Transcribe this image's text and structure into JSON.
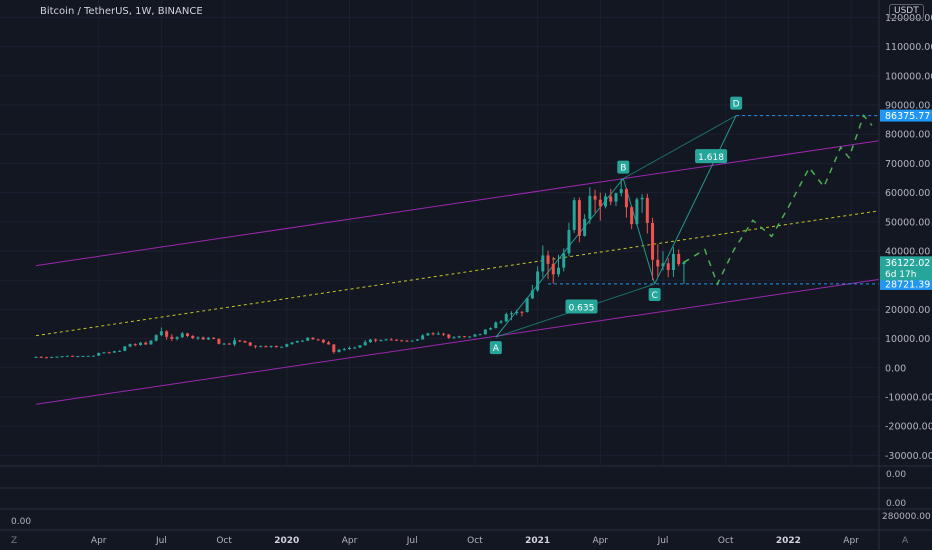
{
  "header": {
    "title": "Bitcoin / TetherUS, 1W, BINANCE",
    "currency": "USDT"
  },
  "price_axis": {
    "ticks": [
      120000,
      110000,
      100000,
      90000,
      80000,
      70000,
      60000,
      50000,
      40000,
      30000,
      20000,
      10000,
      0,
      -10000,
      -20000,
      -30000
    ],
    "tick_labels": [
      "120000.00",
      "110000.00",
      "100000.00",
      "90000.00",
      "80000.00",
      "70000.00",
      "60000.00",
      "50000.00",
      "40000.00",
      "30000.00",
      "20000.00",
      "10000.00",
      "0.00",
      "-10000.00",
      "-20000.00",
      "-30000.00"
    ],
    "badges": {
      "target": {
        "value": 86375.77,
        "label": "86375.77",
        "color": "#2196f3"
      },
      "current": {
        "value": 36122.02,
        "label": "36122.02",
        "sub": "6d 17h",
        "color": "#26a69a"
      },
      "support": {
        "value": 28721.39,
        "label": "28721.39",
        "color": "#2196f3"
      }
    }
  },
  "panes": {
    "pane1_label": "0.00",
    "pane2_label": "0.00",
    "left_label": "0.00",
    "right_label": "280000.00"
  },
  "time_axis": {
    "labels": [
      {
        "t": 3,
        "text": "Apr",
        "bold": false
      },
      {
        "t": 6,
        "text": "Jul",
        "bold": false
      },
      {
        "t": 9,
        "text": "Oct",
        "bold": false
      },
      {
        "t": 12,
        "text": "2020",
        "bold": true
      },
      {
        "t": 15,
        "text": "Apr",
        "bold": false
      },
      {
        "t": 18,
        "text": "Jul",
        "bold": false
      },
      {
        "t": 21,
        "text": "Oct",
        "bold": false
      },
      {
        "t": 24,
        "text": "2021",
        "bold": true
      },
      {
        "t": 27,
        "text": "Apr",
        "bold": false
      },
      {
        "t": 30,
        "text": "Jul",
        "bold": false
      },
      {
        "t": 33,
        "text": "Oct",
        "bold": false
      },
      {
        "t": 36,
        "text": "2022",
        "bold": true
      },
      {
        "t": 39,
        "text": "Apr",
        "bold": false
      }
    ],
    "corner_left": "Z",
    "corner_right": "A"
  },
  "chart_data": {
    "type": "candlestick",
    "title": "Bitcoin / TetherUS, 1W, BINANCE",
    "x_unit": "months since Jan 2019",
    "ylim": [
      -35000,
      125000
    ],
    "candles": [
      {
        "t": 0.0,
        "o": 3600,
        "h": 3900,
        "l": 3450,
        "c": 3750
      },
      {
        "t": 0.25,
        "o": 3750,
        "h": 3950,
        "l": 3550,
        "c": 3600
      },
      {
        "t": 0.5,
        "o": 3600,
        "h": 3800,
        "l": 3400,
        "c": 3500
      },
      {
        "t": 0.75,
        "o": 3500,
        "h": 3800,
        "l": 3400,
        "c": 3700
      },
      {
        "t": 1.0,
        "o": 3700,
        "h": 3900,
        "l": 3600,
        "c": 3800
      },
      {
        "t": 1.25,
        "o": 3800,
        "h": 4100,
        "l": 3700,
        "c": 3950
      },
      {
        "t": 1.5,
        "o": 3950,
        "h": 4200,
        "l": 3850,
        "c": 4100
      },
      {
        "t": 1.75,
        "o": 4100,
        "h": 4200,
        "l": 3900,
        "c": 3950
      },
      {
        "t": 2.0,
        "o": 3950,
        "h": 4050,
        "l": 3850,
        "c": 4000
      },
      {
        "t": 2.25,
        "o": 4000,
        "h": 4100,
        "l": 3900,
        "c": 4050
      },
      {
        "t": 2.5,
        "o": 4050,
        "h": 4150,
        "l": 3950,
        "c": 4100
      },
      {
        "t": 2.75,
        "o": 4100,
        "h": 4200,
        "l": 4000,
        "c": 4150
      },
      {
        "t": 3.0,
        "o": 4150,
        "h": 5200,
        "l": 4100,
        "c": 5100
      },
      {
        "t": 3.25,
        "o": 5100,
        "h": 5400,
        "l": 4900,
        "c": 5300
      },
      {
        "t": 3.5,
        "o": 5300,
        "h": 5500,
        "l": 5000,
        "c": 5200
      },
      {
        "t": 3.75,
        "o": 5200,
        "h": 5800,
        "l": 5100,
        "c": 5700
      },
      {
        "t": 4.0,
        "o": 5700,
        "h": 6000,
        "l": 5500,
        "c": 5800
      },
      {
        "t": 4.25,
        "o": 5800,
        "h": 7500,
        "l": 5700,
        "c": 7300
      },
      {
        "t": 4.5,
        "o": 7300,
        "h": 8300,
        "l": 7100,
        "c": 8100
      },
      {
        "t": 4.75,
        "o": 8100,
        "h": 8400,
        "l": 7400,
        "c": 7800
      },
      {
        "t": 5.0,
        "o": 7800,
        "h": 8800,
        "l": 7600,
        "c": 8600
      },
      {
        "t": 5.25,
        "o": 8600,
        "h": 9000,
        "l": 7800,
        "c": 8000
      },
      {
        "t": 5.5,
        "o": 8000,
        "h": 9500,
        "l": 7900,
        "c": 9300
      },
      {
        "t": 5.75,
        "o": 9300,
        "h": 11500,
        "l": 9000,
        "c": 11200
      },
      {
        "t": 6.0,
        "o": 11200,
        "h": 13800,
        "l": 10800,
        "c": 12500
      },
      {
        "t": 6.25,
        "o": 12500,
        "h": 12900,
        "l": 9600,
        "c": 10600
      },
      {
        "t": 6.5,
        "o": 10600,
        "h": 11500,
        "l": 9200,
        "c": 9900
      },
      {
        "t": 6.75,
        "o": 9900,
        "h": 10800,
        "l": 9400,
        "c": 10500
      },
      {
        "t": 7.0,
        "o": 10500,
        "h": 12300,
        "l": 10200,
        "c": 11800
      },
      {
        "t": 7.25,
        "o": 11800,
        "h": 12000,
        "l": 10500,
        "c": 10900
      },
      {
        "t": 7.5,
        "o": 10900,
        "h": 11200,
        "l": 9800,
        "c": 10200
      },
      {
        "t": 7.75,
        "o": 10200,
        "h": 10800,
        "l": 9500,
        "c": 10400
      },
      {
        "t": 8.0,
        "o": 10400,
        "h": 10700,
        "l": 9600,
        "c": 9700
      },
      {
        "t": 8.25,
        "o": 9700,
        "h": 10500,
        "l": 9500,
        "c": 10300
      },
      {
        "t": 8.5,
        "o": 10300,
        "h": 10500,
        "l": 9800,
        "c": 9900
      },
      {
        "t": 8.75,
        "o": 9900,
        "h": 10100,
        "l": 8000,
        "c": 8200
      },
      {
        "t": 9.0,
        "o": 8200,
        "h": 8500,
        "l": 7800,
        "c": 8300
      },
      {
        "t": 9.25,
        "o": 8300,
        "h": 8500,
        "l": 7900,
        "c": 8000
      },
      {
        "t": 9.5,
        "o": 8000,
        "h": 10300,
        "l": 7400,
        "c": 9400
      },
      {
        "t": 9.75,
        "o": 9400,
        "h": 9500,
        "l": 8800,
        "c": 9200
      },
      {
        "t": 10.0,
        "o": 9200,
        "h": 9300,
        "l": 8500,
        "c": 8700
      },
      {
        "t": 10.25,
        "o": 8700,
        "h": 8800,
        "l": 7400,
        "c": 7600
      },
      {
        "t": 10.5,
        "o": 7600,
        "h": 7700,
        "l": 6600,
        "c": 7300
      },
      {
        "t": 10.75,
        "o": 7300,
        "h": 7700,
        "l": 7100,
        "c": 7400
      },
      {
        "t": 11.0,
        "o": 7400,
        "h": 7700,
        "l": 7000,
        "c": 7200
      },
      {
        "t": 11.25,
        "o": 7200,
        "h": 7600,
        "l": 6800,
        "c": 7500
      },
      {
        "t": 11.5,
        "o": 7500,
        "h": 7600,
        "l": 6900,
        "c": 7100
      },
      {
        "t": 11.75,
        "o": 7100,
        "h": 7300,
        "l": 6900,
        "c": 7200
      },
      {
        "t": 12.0,
        "o": 7200,
        "h": 8300,
        "l": 7100,
        "c": 8100
      },
      {
        "t": 12.25,
        "o": 8100,
        "h": 8800,
        "l": 7900,
        "c": 8700
      },
      {
        "t": 12.5,
        "o": 8700,
        "h": 9300,
        "l": 8500,
        "c": 9200
      },
      {
        "t": 12.75,
        "o": 9200,
        "h": 9500,
        "l": 8900,
        "c": 9300
      },
      {
        "t": 13.0,
        "o": 9300,
        "h": 10500,
        "l": 9200,
        "c": 10300
      },
      {
        "t": 13.25,
        "o": 10300,
        "h": 10500,
        "l": 9600,
        "c": 9700
      },
      {
        "t": 13.5,
        "o": 9700,
        "h": 10000,
        "l": 9400,
        "c": 9600
      },
      {
        "t": 13.75,
        "o": 9600,
        "h": 9800,
        "l": 8400,
        "c": 8700
      },
      {
        "t": 14.0,
        "o": 8700,
        "h": 9200,
        "l": 7900,
        "c": 8000
      },
      {
        "t": 14.25,
        "o": 8000,
        "h": 8100,
        "l": 4800,
        "c": 5400
      },
      {
        "t": 14.5,
        "o": 5400,
        "h": 6400,
        "l": 5200,
        "c": 6200
      },
      {
        "t": 14.75,
        "o": 6200,
        "h": 6800,
        "l": 5900,
        "c": 6400
      },
      {
        "t": 15.0,
        "o": 6400,
        "h": 7300,
        "l": 6200,
        "c": 6800
      },
      {
        "t": 15.25,
        "o": 6800,
        "h": 7300,
        "l": 6600,
        "c": 6900
      },
      {
        "t": 15.5,
        "o": 6900,
        "h": 7800,
        "l": 6800,
        "c": 7700
      },
      {
        "t": 15.75,
        "o": 7700,
        "h": 9500,
        "l": 7600,
        "c": 8800
      },
      {
        "t": 16.0,
        "o": 8800,
        "h": 9900,
        "l": 8500,
        "c": 9700
      },
      {
        "t": 16.25,
        "o": 9700,
        "h": 10000,
        "l": 8700,
        "c": 9300
      },
      {
        "t": 16.5,
        "o": 9300,
        "h": 9700,
        "l": 9000,
        "c": 9500
      },
      {
        "t": 16.75,
        "o": 9500,
        "h": 10000,
        "l": 9300,
        "c": 9700
      },
      {
        "t": 17.0,
        "o": 9700,
        "h": 10200,
        "l": 9500,
        "c": 9600
      },
      {
        "t": 17.25,
        "o": 9600,
        "h": 9800,
        "l": 9300,
        "c": 9400
      },
      {
        "t": 17.5,
        "o": 9400,
        "h": 9600,
        "l": 9100,
        "c": 9300
      },
      {
        "t": 17.75,
        "o": 9300,
        "h": 9500,
        "l": 9000,
        "c": 9200
      },
      {
        "t": 18.0,
        "o": 9200,
        "h": 9400,
        "l": 9000,
        "c": 9300
      },
      {
        "t": 18.25,
        "o": 9300,
        "h": 9800,
        "l": 9200,
        "c": 9700
      },
      {
        "t": 18.5,
        "o": 9700,
        "h": 11500,
        "l": 9600,
        "c": 11100
      },
      {
        "t": 18.75,
        "o": 11100,
        "h": 12000,
        "l": 10900,
        "c": 11800
      },
      {
        "t": 19.0,
        "o": 11800,
        "h": 12200,
        "l": 11100,
        "c": 11600
      },
      {
        "t": 19.25,
        "o": 11600,
        "h": 12400,
        "l": 11300,
        "c": 11700
      },
      {
        "t": 19.5,
        "o": 11700,
        "h": 12000,
        "l": 10900,
        "c": 11400
      },
      {
        "t": 19.75,
        "o": 11400,
        "h": 11600,
        "l": 9900,
        "c": 10300
      },
      {
        "t": 20.0,
        "o": 10300,
        "h": 10900,
        "l": 10100,
        "c": 10400
      },
      {
        "t": 20.25,
        "o": 10400,
        "h": 11000,
        "l": 10200,
        "c": 10800
      },
      {
        "t": 20.5,
        "o": 10800,
        "h": 10900,
        "l": 10400,
        "c": 10600
      },
      {
        "t": 20.75,
        "o": 10600,
        "h": 10800,
        "l": 10300,
        "c": 10700
      },
      {
        "t": 21.0,
        "o": 10700,
        "h": 11600,
        "l": 10500,
        "c": 11400
      },
      {
        "t": 21.25,
        "o": 11400,
        "h": 11700,
        "l": 11200,
        "c": 11500
      },
      {
        "t": 21.5,
        "o": 11500,
        "h": 13200,
        "l": 11300,
        "c": 13100
      },
      {
        "t": 21.75,
        "o": 13100,
        "h": 13900,
        "l": 12900,
        "c": 13600
      },
      {
        "t": 22.0,
        "o": 13600,
        "h": 15900,
        "l": 13500,
        "c": 15500
      },
      {
        "t": 22.25,
        "o": 15500,
        "h": 16400,
        "l": 15000,
        "c": 15900
      },
      {
        "t": 22.5,
        "o": 15900,
        "h": 18900,
        "l": 15700,
        "c": 18400
      },
      {
        "t": 22.75,
        "o": 18400,
        "h": 19400,
        "l": 16300,
        "c": 18700
      },
      {
        "t": 23.0,
        "o": 18700,
        "h": 19900,
        "l": 18000,
        "c": 19200
      },
      {
        "t": 23.25,
        "o": 19200,
        "h": 19400,
        "l": 17600,
        "c": 19100
      },
      {
        "t": 23.5,
        "o": 19100,
        "h": 24000,
        "l": 18900,
        "c": 23800
      },
      {
        "t": 23.75,
        "o": 23800,
        "h": 28400,
        "l": 23500,
        "c": 26500
      },
      {
        "t": 24.0,
        "o": 26500,
        "h": 34800,
        "l": 26000,
        "c": 33000
      },
      {
        "t": 24.25,
        "o": 33000,
        "h": 41900,
        "l": 31000,
        "c": 38500
      },
      {
        "t": 24.5,
        "o": 38500,
        "h": 40100,
        "l": 30400,
        "c": 35600
      },
      {
        "t": 24.75,
        "o": 35600,
        "h": 38000,
        "l": 28800,
        "c": 32000
      },
      {
        "t": 25.0,
        "o": 32000,
        "h": 38700,
        "l": 31100,
        "c": 34300
      },
      {
        "t": 25.25,
        "o": 34300,
        "h": 40900,
        "l": 33000,
        "c": 39200
      },
      {
        "t": 25.5,
        "o": 39200,
        "h": 49700,
        "l": 38200,
        "c": 47200
      },
      {
        "t": 25.75,
        "o": 47200,
        "h": 58300,
        "l": 46200,
        "c": 57400
      },
      {
        "t": 26.0,
        "o": 57400,
        "h": 58300,
        "l": 43000,
        "c": 45200
      },
      {
        "t": 26.25,
        "o": 45200,
        "h": 52600,
        "l": 44900,
        "c": 51000
      },
      {
        "t": 26.5,
        "o": 51000,
        "h": 61800,
        "l": 49200,
        "c": 58900
      },
      {
        "t": 26.75,
        "o": 58900,
        "h": 61000,
        "l": 53100,
        "c": 57600
      },
      {
        "t": 27.0,
        "o": 57600,
        "h": 60000,
        "l": 50400,
        "c": 55300
      },
      {
        "t": 27.25,
        "o": 55300,
        "h": 59800,
        "l": 54600,
        "c": 58700
      },
      {
        "t": 27.5,
        "o": 58700,
        "h": 61300,
        "l": 55700,
        "c": 56900
      },
      {
        "t": 27.75,
        "o": 56900,
        "h": 60000,
        "l": 55400,
        "c": 59800
      },
      {
        "t": 28.0,
        "o": 59800,
        "h": 64800,
        "l": 58700,
        "c": 61200
      },
      {
        "t": 28.25,
        "o": 61200,
        "h": 61600,
        "l": 51400,
        "c": 55000
      },
      {
        "t": 28.5,
        "o": 55000,
        "h": 55400,
        "l": 47500,
        "c": 49200
      },
      {
        "t": 28.75,
        "o": 49200,
        "h": 58300,
        "l": 48800,
        "c": 57700
      },
      {
        "t": 29.0,
        "o": 57700,
        "h": 59500,
        "l": 53000,
        "c": 58200
      },
      {
        "t": 29.25,
        "o": 58200,
        "h": 59600,
        "l": 46000,
        "c": 49600
      },
      {
        "t": 29.5,
        "o": 49600,
        "h": 51400,
        "l": 30000,
        "c": 37000
      },
      {
        "t": 29.75,
        "o": 37000,
        "h": 42300,
        "l": 31200,
        "c": 34700
      },
      {
        "t": 30.0,
        "o": 34700,
        "h": 39900,
        "l": 33400,
        "c": 35800
      },
      {
        "t": 30.25,
        "o": 35800,
        "h": 37500,
        "l": 31000,
        "c": 33500
      },
      {
        "t": 30.5,
        "o": 33500,
        "h": 41300,
        "l": 31100,
        "c": 39000
      },
      {
        "t": 30.75,
        "o": 39000,
        "h": 40500,
        "l": 34800,
        "c": 35500
      },
      {
        "t": 31.0,
        "o": 35500,
        "h": 36600,
        "l": 28700,
        "c": 36122
      }
    ],
    "projection_path": [
      {
        "t": 31.0,
        "v": 36122
      },
      {
        "t": 32.0,
        "v": 40500
      },
      {
        "t": 32.6,
        "v": 28700
      },
      {
        "t": 33.4,
        "v": 40500
      },
      {
        "t": 34.3,
        "v": 50500
      },
      {
        "t": 35.2,
        "v": 45000
      },
      {
        "t": 36.0,
        "v": 55000
      },
      {
        "t": 37.0,
        "v": 68500
      },
      {
        "t": 37.7,
        "v": 62000
      },
      {
        "t": 38.5,
        "v": 75500
      },
      {
        "t": 38.9,
        "v": 72000
      },
      {
        "t": 39.6,
        "v": 86375
      },
      {
        "t": 40.0,
        "v": 83000
      }
    ],
    "pattern_points": [
      {
        "label": "A",
        "t": 22.0,
        "v": 10500
      },
      {
        "label": "B",
        "t": 28.1,
        "v": 64800
      },
      {
        "label": "C",
        "t": 29.6,
        "v": 28700
      },
      {
        "label": "D",
        "t": 33.5,
        "v": 86375
      }
    ],
    "ratios": [
      {
        "label": "0.635",
        "t": 26.1,
        "v": 21000
      },
      {
        "label": "1.618",
        "t": 32.3,
        "v": 72500
      }
    ],
    "channel": {
      "upper": [
        {
          "t": 0.0,
          "v": 35000
        },
        {
          "t": 41.5,
          "v": 79000
        }
      ],
      "middle": [
        {
          "t": 0.0,
          "v": 11000
        },
        {
          "t": 41.5,
          "v": 55000
        }
      ],
      "lower": [
        {
          "t": 0.0,
          "v": -12500
        },
        {
          "t": 41.5,
          "v": 31500
        }
      ]
    },
    "horizontal_levels": [
      {
        "from_t": 33.5,
        "v": 86375.77
      },
      {
        "from_t": 24.5,
        "v": 28721.39
      }
    ]
  },
  "colors": {
    "background": "#131722",
    "up": "#26a69a",
    "down": "#ef5350",
    "channel": "#9c27b0",
    "midline": "#c6c41e",
    "projection": "#4caf50",
    "pattern": "#26a69a",
    "level": "#2196f3"
  }
}
